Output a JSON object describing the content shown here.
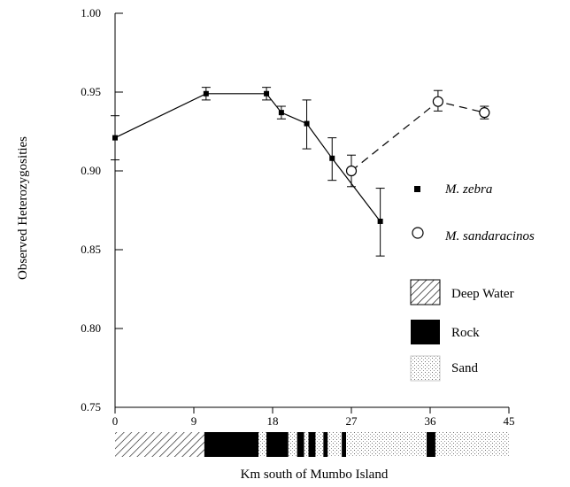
{
  "chart_data": {
    "type": "line",
    "title": "",
    "xlabel": "Km south of Mumbo Island",
    "ylabel": "Observed Heterozygosities",
    "xlim": [
      0,
      45
    ],
    "ylim": [
      0.75,
      1.0
    ],
    "x_ticks": [
      0,
      9,
      18,
      27,
      36,
      45
    ],
    "x_tick_labels": [
      "0",
      "9",
      "18",
      "27",
      "36",
      "45"
    ],
    "y_ticks": [
      0.75,
      0.8,
      0.85,
      0.9,
      0.95,
      1.0
    ],
    "y_tick_labels": [
      "0.75",
      "0.80",
      "0.85",
      "0.90",
      "0.95",
      "1.00"
    ],
    "grid": false,
    "legend_position": "right",
    "series": [
      {
        "name": "M. zebra",
        "marker": "filled-square",
        "line": "solid",
        "color": "#000000",
        "points": [
          {
            "x": 0,
            "y": 0.921,
            "err_lo": 0.907,
            "err_hi": 0.935
          },
          {
            "x": 10.4,
            "y": 0.949,
            "err_lo": 0.945,
            "err_hi": 0.953
          },
          {
            "x": 17.3,
            "y": 0.949,
            "err_lo": 0.945,
            "err_hi": 0.953
          },
          {
            "x": 19,
            "y": 0.937,
            "err_lo": 0.933,
            "err_hi": 0.941
          },
          {
            "x": 21.9,
            "y": 0.93,
            "err_lo": 0.914,
            "err_hi": 0.945
          },
          {
            "x": 24.8,
            "y": 0.908,
            "err_lo": 0.894,
            "err_hi": 0.921
          },
          {
            "x": 30.3,
            "y": 0.868,
            "err_lo": 0.846,
            "err_hi": 0.889
          }
        ]
      },
      {
        "name": "M. sandaracinos",
        "marker": "open-circle",
        "line": "dashed",
        "color": "#000000",
        "points": [
          {
            "x": 27.0,
            "y": 0.9,
            "err_lo": 0.89,
            "err_hi": 0.91
          },
          {
            "x": 36.9,
            "y": 0.944,
            "err_lo": 0.938,
            "err_hi": 0.951
          },
          {
            "x": 42.2,
            "y": 0.937,
            "err_lo": 0.933,
            "err_hi": 0.941
          }
        ]
      }
    ],
    "habitat_legend": [
      "Deep Water",
      "Rock",
      "Sand"
    ],
    "habitat_bar": [
      {
        "type": "Deep Water",
        "start": 0,
        "end": 10.2
      },
      {
        "type": "Rock",
        "start": 10.2,
        "end": 16.4
      },
      {
        "type": "Sand",
        "start": 16.4,
        "end": 17.3
      },
      {
        "type": "Rock",
        "start": 17.3,
        "end": 19.8
      },
      {
        "type": "Sand",
        "start": 19.8,
        "end": 20.8
      },
      {
        "type": "Rock",
        "start": 20.8,
        "end": 21.6
      },
      {
        "type": "Sand",
        "start": 21.6,
        "end": 22.1
      },
      {
        "type": "Rock",
        "start": 22.1,
        "end": 22.9
      },
      {
        "type": "Sand",
        "start": 22.9,
        "end": 23.8
      },
      {
        "type": "Rock",
        "start": 23.8,
        "end": 24.3
      },
      {
        "type": "Sand",
        "start": 24.3,
        "end": 25.9
      },
      {
        "type": "Rock",
        "start": 25.9,
        "end": 26.4
      },
      {
        "type": "Sand",
        "start": 26.4,
        "end": 35.6
      },
      {
        "type": "Rock",
        "start": 35.6,
        "end": 36.6
      },
      {
        "type": "Sand",
        "start": 36.6,
        "end": 45
      }
    ]
  }
}
